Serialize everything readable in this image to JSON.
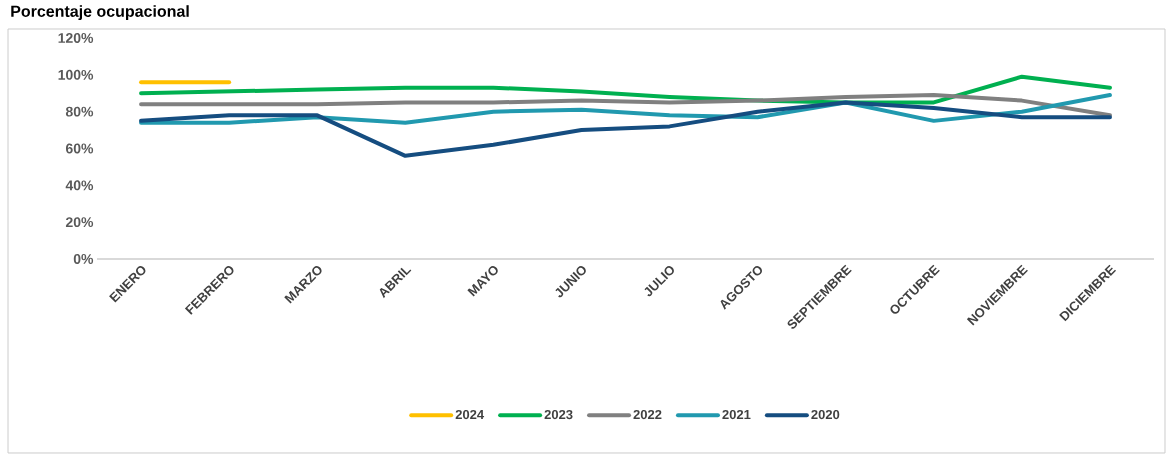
{
  "chart_data": {
    "type": "line",
    "title": "Porcentaje ocupacional",
    "categories": [
      "ENERO",
      "FEBRERO",
      "MARZO",
      "ABRIL",
      "MAYO",
      "JUNIO",
      "JULIO",
      "AGOSTO",
      "SEPTIEMBRE",
      "OCTUBRE",
      "NOVIEMBRE",
      "DICIEMBRE"
    ],
    "series": [
      {
        "name": "2024",
        "color": "#ffc000",
        "values": [
          96,
          96,
          null,
          null,
          null,
          null,
          null,
          null,
          null,
          null,
          null,
          null
        ]
      },
      {
        "name": "2023",
        "color": "#00b050",
        "values": [
          90,
          91,
          92,
          93,
          93,
          91,
          88,
          86,
          85,
          85,
          99,
          93
        ]
      },
      {
        "name": "2022",
        "color": "#808080",
        "values": [
          84,
          84,
          84,
          85,
          85,
          86,
          85,
          86,
          88,
          89,
          86,
          78
        ]
      },
      {
        "name": "2021",
        "color": "#2199af",
        "values": [
          74,
          74,
          77,
          74,
          80,
          81,
          78,
          77,
          85,
          75,
          80,
          89
        ]
      },
      {
        "name": "2020",
        "color": "#154d80",
        "values": [
          75,
          78,
          78,
          56,
          62,
          70,
          72,
          80,
          85,
          82,
          77,
          77
        ]
      }
    ],
    "ylim": [
      0,
      120
    ],
    "yticks": [
      {
        "value": 0,
        "label": "0%"
      },
      {
        "value": 20,
        "label": "20%"
      },
      {
        "value": 40,
        "label": "40%"
      },
      {
        "value": 60,
        "label": "60%"
      },
      {
        "value": 80,
        "label": "80%"
      },
      {
        "value": 100,
        "label": "100%"
      },
      {
        "value": 120,
        "label": "120%"
      }
    ],
    "grid": false,
    "legend": "bottom",
    "marker": "none",
    "line_style": "solid"
  }
}
